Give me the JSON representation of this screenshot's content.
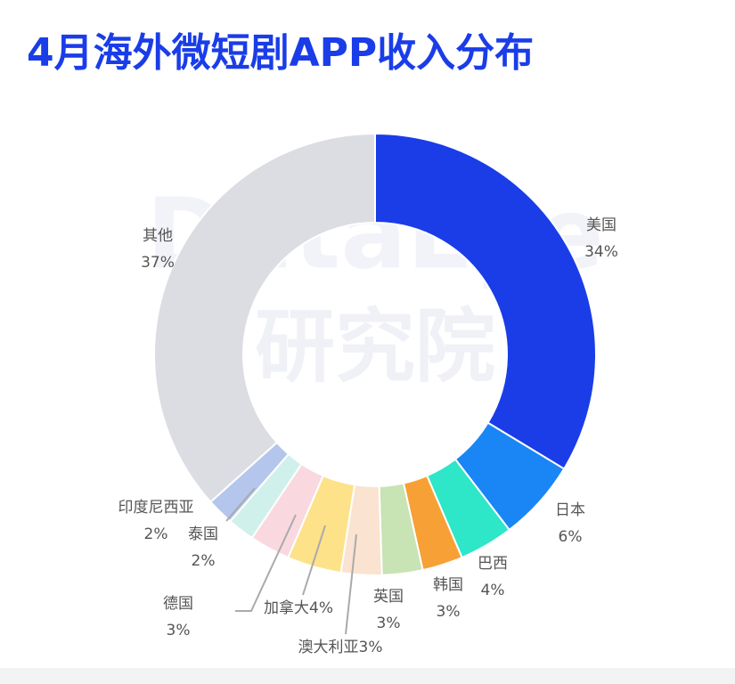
{
  "chart_data": {
    "type": "donut",
    "title": "4月海外微短剧APP收入分布",
    "watermark": [
      "DataEye",
      "研究院"
    ],
    "categories": [
      "美国",
      "日本",
      "巴西",
      "韩国",
      "英国",
      "澳大利亚",
      "加拿大",
      "德国",
      "泰国",
      "印度尼西亚",
      "其他"
    ],
    "values": [
      34,
      6,
      4,
      3,
      3,
      3,
      4,
      3,
      2,
      2,
      37
    ],
    "value_labels": [
      "34%",
      "6%",
      "4%",
      "3%",
      "3%",
      "3%",
      "4%",
      "3%",
      "2%",
      "2%",
      "37%"
    ],
    "colors": [
      "#1a3de8",
      "#1a86f5",
      "#2ee6c8",
      "#f7a035",
      "#c8e3b4",
      "#fae3d0",
      "#fde28a",
      "#f9d9df",
      "#d0f0ec",
      "#b4c6ec",
      "#dcdde2"
    ]
  }
}
